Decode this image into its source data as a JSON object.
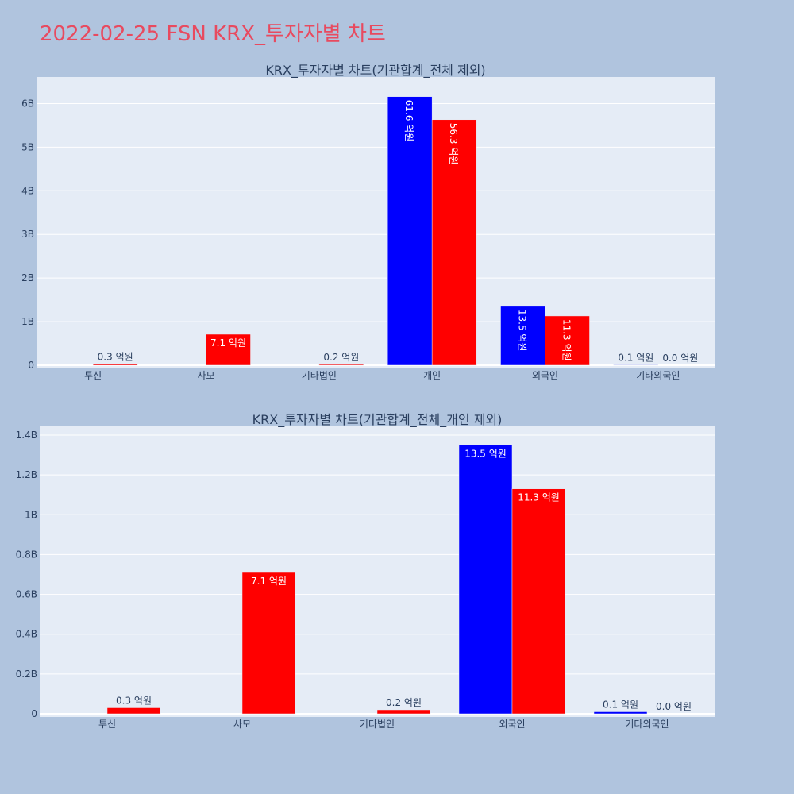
{
  "title": "2022-02-25 FSN KRX_투자자별 차트",
  "colors": {
    "background": "#b0c4de",
    "plot_bg": "#e5ecf6",
    "title": "#e84a5f",
    "buy": "#0000ff",
    "sell": "#ff0000",
    "axis_text": "#2a3f5f"
  },
  "chart_data": [
    {
      "type": "bar",
      "title": "KRX_투자자별 차트(기관합계_전체 제외)",
      "categories": [
        "투신",
        "사모",
        "기타법인",
        "개인",
        "외국인",
        "기타외국인"
      ],
      "ylim": [
        0,
        6.5
      ],
      "y_ticks": [
        0,
        1,
        2,
        3,
        4,
        5,
        6
      ],
      "y_tick_labels": [
        "0",
        "1B",
        "2B",
        "3B",
        "4B",
        "5B",
        "6B"
      ],
      "grid": true,
      "series": [
        {
          "color": "#0000ff",
          "values": [
            null,
            null,
            null,
            6.16,
            1.35,
            0.01
          ],
          "labels": [
            "",
            "",
            "",
            "61.6 억원",
            "13.5 억원",
            "0.1 억원"
          ]
        },
        {
          "color": "#ff0000",
          "values": [
            0.03,
            0.71,
            0.02,
            5.63,
            1.13,
            0.0
          ],
          "labels": [
            "0.3 억원",
            "7.1 억원",
            "0.2 억원",
            "56.3 억원",
            "11.3 억원",
            "0.0 억원"
          ]
        }
      ]
    },
    {
      "type": "bar",
      "title": "KRX_투자자별 차트(기관합계_전체_개인 제외)",
      "categories": [
        "투신",
        "사모",
        "기타법인",
        "외국인",
        "기타외국인"
      ],
      "ylim": [
        0,
        1.42
      ],
      "y_ticks": [
        0,
        0.2,
        0.4,
        0.6,
        0.8,
        1.0,
        1.2,
        1.4
      ],
      "y_tick_labels": [
        "0",
        "0.2B",
        "0.4B",
        "0.6B",
        "0.8B",
        "1B",
        "1.2B",
        "1.4B"
      ],
      "grid": true,
      "series": [
        {
          "color": "#0000ff",
          "values": [
            null,
            null,
            null,
            1.35,
            0.01
          ],
          "labels": [
            "",
            "",
            "",
            "13.5 억원",
            "0.1 억원"
          ]
        },
        {
          "color": "#ff0000",
          "values": [
            0.03,
            0.71,
            0.02,
            1.13,
            0.0
          ],
          "labels": [
            "0.3 억원",
            "7.1 억원",
            "0.2 억원",
            "11.3 억원",
            "0.0 억원"
          ]
        }
      ]
    }
  ]
}
